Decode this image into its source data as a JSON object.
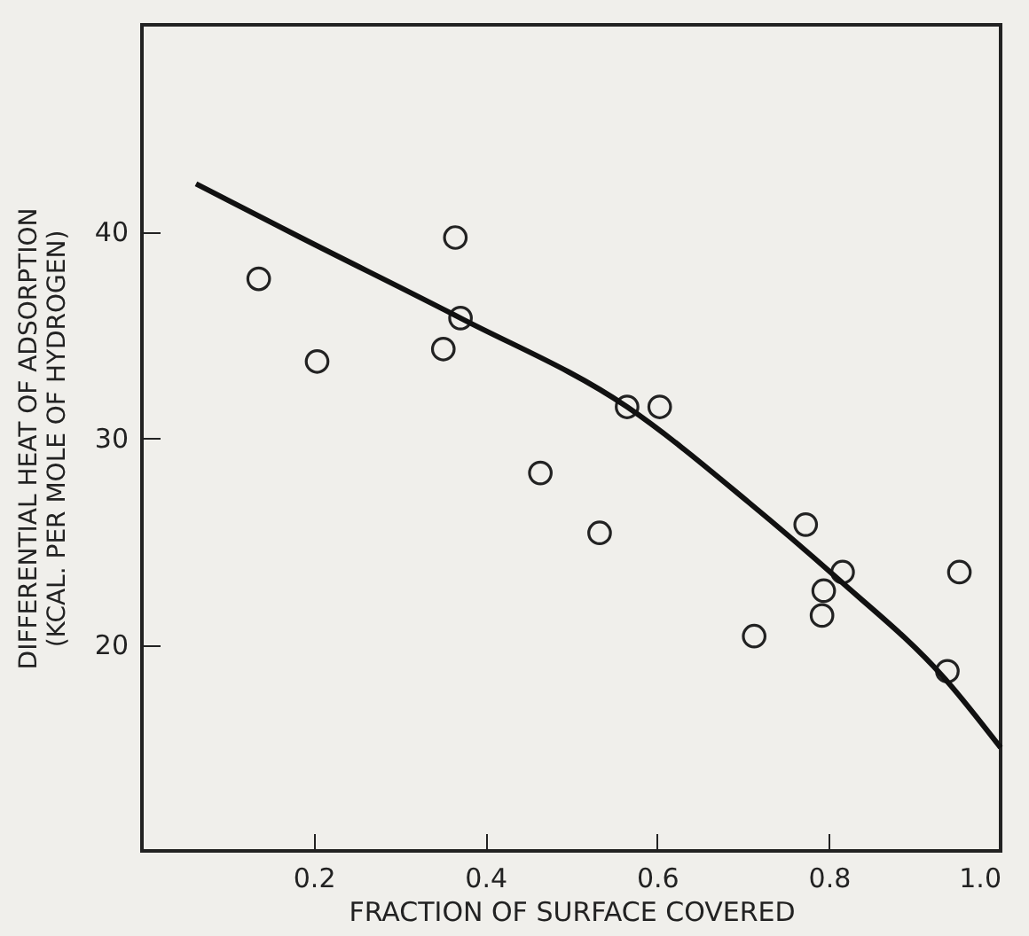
{
  "chart_data": {
    "type": "scatter",
    "xlabel": "FRACTION OF SURFACE COVERED",
    "ylabel": "DIFFERENTIAL HEAT OF ADSORPTION\n(KCAL. PER MOLE OF HYDROGEN)",
    "xlim": [
      0,
      1.0
    ],
    "ylim": [
      10,
      50
    ],
    "xticks": [
      0.2,
      0.4,
      0.6,
      0.8,
      {
        "value": 1.0,
        "label": "1.0"
      }
    ],
    "yticks": [
      20,
      30,
      40
    ],
    "grid": false,
    "series": [
      {
        "color": "#222222",
        "marker": "circle",
        "x": [
          0.136,
          0.204,
          0.365,
          0.371,
          0.351,
          0.565,
          0.603,
          0.464,
          0.533,
          0.773,
          0.816,
          0.952,
          0.794,
          0.792,
          0.713,
          0.938
        ],
        "values": [
          37.7,
          33.7,
          39.7,
          35.8,
          34.3,
          31.5,
          31.5,
          28.3,
          25.4,
          25.8,
          23.5,
          23.5,
          22.6,
          21.4,
          20.4,
          18.7
        ]
      },
      {
        "type": "line",
        "color": "#111111",
        "line_style": "solid",
        "x": [
          0.063,
          0.185,
          0.371,
          0.565,
          0.706,
          0.807,
          0.938,
          1.0
        ],
        "values": [
          42.3,
          39.7,
          35.8,
          31.5,
          26.9,
          23.3,
          18.2,
          15.0
        ]
      }
    ]
  }
}
